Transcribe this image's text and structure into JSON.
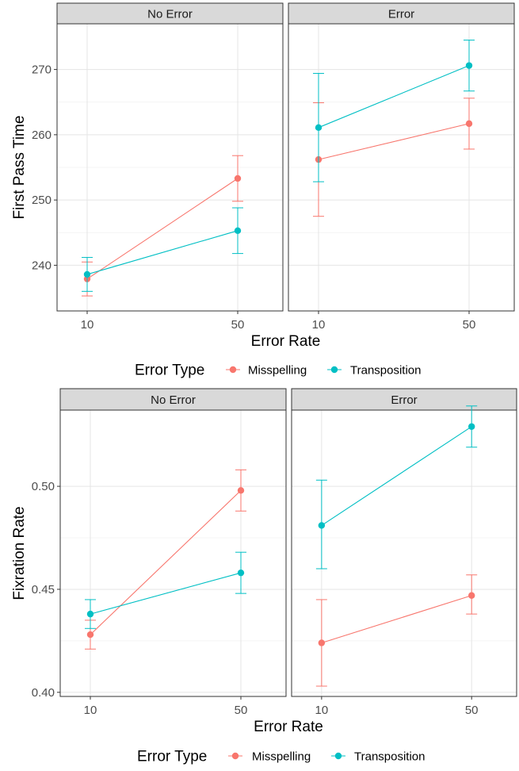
{
  "colors": {
    "misspelling": "#F8766D",
    "transposition": "#00BFC4"
  },
  "chart_data": [
    {
      "type": "line",
      "xlabel": "Error Rate",
      "ylabel": "First Pass Time",
      "x": [
        10,
        50
      ],
      "ylim": [
        233,
        277
      ],
      "yticks": [
        240,
        250,
        260,
        270
      ],
      "grid": true,
      "legend": {
        "title": "Error Type",
        "position": "bottom",
        "entries": [
          "Misspelling",
          "Transposition"
        ]
      },
      "facets": [
        {
          "label": "No Error",
          "series": [
            {
              "name": "Misspelling",
              "values": [
                237.9,
                253.3
              ],
              "lower": [
                235.3,
                249.8
              ],
              "upper": [
                240.5,
                256.8
              ]
            },
            {
              "name": "Transposition",
              "values": [
                238.6,
                245.3
              ],
              "lower": [
                236.0,
                241.8
              ],
              "upper": [
                241.2,
                248.8
              ]
            }
          ]
        },
        {
          "label": "Error",
          "series": [
            {
              "name": "Misspelling",
              "values": [
                256.2,
                261.7
              ],
              "lower": [
                247.5,
                257.8
              ],
              "upper": [
                264.9,
                265.6
              ]
            },
            {
              "name": "Transposition",
              "values": [
                261.1,
                270.6
              ],
              "lower": [
                252.8,
                266.7
              ],
              "upper": [
                269.4,
                274.5
              ]
            }
          ]
        }
      ]
    },
    {
      "type": "line",
      "xlabel": "Error Rate",
      "ylabel": "Fixration Rate",
      "x": [
        10,
        50
      ],
      "ylim": [
        0.398,
        0.537
      ],
      "yticks": [
        "0.40",
        "0.45",
        "0.50"
      ],
      "grid": true,
      "legend": {
        "title": "Error Type",
        "position": "bottom",
        "entries": [
          "Misspelling",
          "Transposition"
        ]
      },
      "facets": [
        {
          "label": "No Error",
          "series": [
            {
              "name": "Misspelling",
              "values": [
                0.428,
                0.498
              ],
              "lower": [
                0.421,
                0.488
              ],
              "upper": [
                0.435,
                0.508
              ]
            },
            {
              "name": "Transposition",
              "values": [
                0.438,
                0.458
              ],
              "lower": [
                0.431,
                0.448
              ],
              "upper": [
                0.445,
                0.468
              ]
            }
          ]
        },
        {
          "label": "Error",
          "series": [
            {
              "name": "Misspelling",
              "values": [
                0.424,
                0.447
              ],
              "lower": [
                0.403,
                0.438
              ],
              "upper": [
                0.445,
                0.457
              ]
            },
            {
              "name": "Transposition",
              "values": [
                0.481,
                0.529
              ],
              "lower": [
                0.46,
                0.519
              ],
              "upper": [
                0.503,
                0.539
              ]
            }
          ]
        }
      ]
    }
  ]
}
